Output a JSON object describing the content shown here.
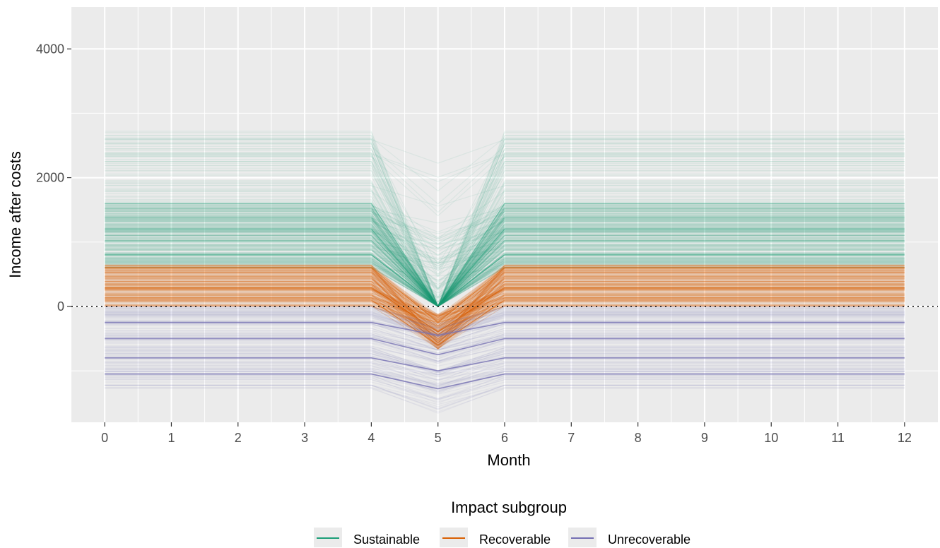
{
  "chart_data": {
    "type": "line",
    "xlabel": "Month",
    "ylabel": "Income after costs",
    "x_ticks": [
      0,
      1,
      2,
      3,
      4,
      5,
      6,
      7,
      8,
      9,
      10,
      11,
      12
    ],
    "y_ticks": [
      0,
      2000,
      4000
    ],
    "xlim": [
      -0.5,
      12.5
    ],
    "ylim": [
      -1800,
      4650
    ],
    "grid": true,
    "reference_line": {
      "y": 0,
      "style": "dotted"
    },
    "legend": {
      "title": "Impact subgroup",
      "placement": "bottom",
      "entries": [
        "Sustainable",
        "Recoverable",
        "Unrecoverable"
      ]
    },
    "series": [
      {
        "name": "Sustainable",
        "color": "#1b9e77",
        "baseline_range": [
          0,
          2750
        ],
        "typical_range": [
          600,
          1600
        ],
        "month5_value": 0,
        "representative_lines": [
          {
            "x": [
              0,
              4,
              5,
              6,
              12
            ],
            "y": [
              1600,
              1600,
              0,
              1600,
              1600
            ]
          },
          {
            "x": [
              0,
              4,
              5,
              6,
              12
            ],
            "y": [
              1200,
              1200,
              0,
              1200,
              1200
            ]
          },
          {
            "x": [
              0,
              4,
              5,
              6,
              12
            ],
            "y": [
              800,
              800,
              0,
              800,
              800
            ]
          }
        ]
      },
      {
        "name": "Recoverable",
        "color": "#d95f02",
        "baseline_range": [
          0,
          650
        ],
        "month5_range": [
          -800,
          0
        ],
        "representative_lines": [
          {
            "x": [
              0,
              4,
              5,
              6,
              12
            ],
            "y": [
              600,
              600,
              -250,
              600,
              600
            ]
          },
          {
            "x": [
              0,
              4,
              5,
              6,
              12
            ],
            "y": [
              300,
              300,
              -400,
              300,
              300
            ]
          },
          {
            "x": [
              0,
              4,
              5,
              6,
              12
            ],
            "y": [
              100,
              100,
              -600,
              100,
              100
            ]
          }
        ]
      },
      {
        "name": "Unrecoverable",
        "color": "#7570b3",
        "baseline_range": [
          -1350,
          0
        ],
        "month5_range": [
          -1600,
          -200
        ],
        "representative_lines": [
          {
            "x": [
              0,
              4,
              5,
              6,
              12
            ],
            "y": [
              -250,
              -250,
              -450,
              -250,
              -250
            ]
          },
          {
            "x": [
              0,
              4,
              5,
              6,
              12
            ],
            "y": [
              -500,
              -500,
              -750,
              -500,
              -500
            ]
          },
          {
            "x": [
              0,
              4,
              5,
              6,
              12
            ],
            "y": [
              -800,
              -800,
              -1000,
              -800,
              -800
            ]
          },
          {
            "x": [
              0,
              4,
              5,
              6,
              12
            ],
            "y": [
              -1050,
              -1050,
              -1280,
              -1050,
              -1050
            ]
          }
        ]
      }
    ]
  }
}
